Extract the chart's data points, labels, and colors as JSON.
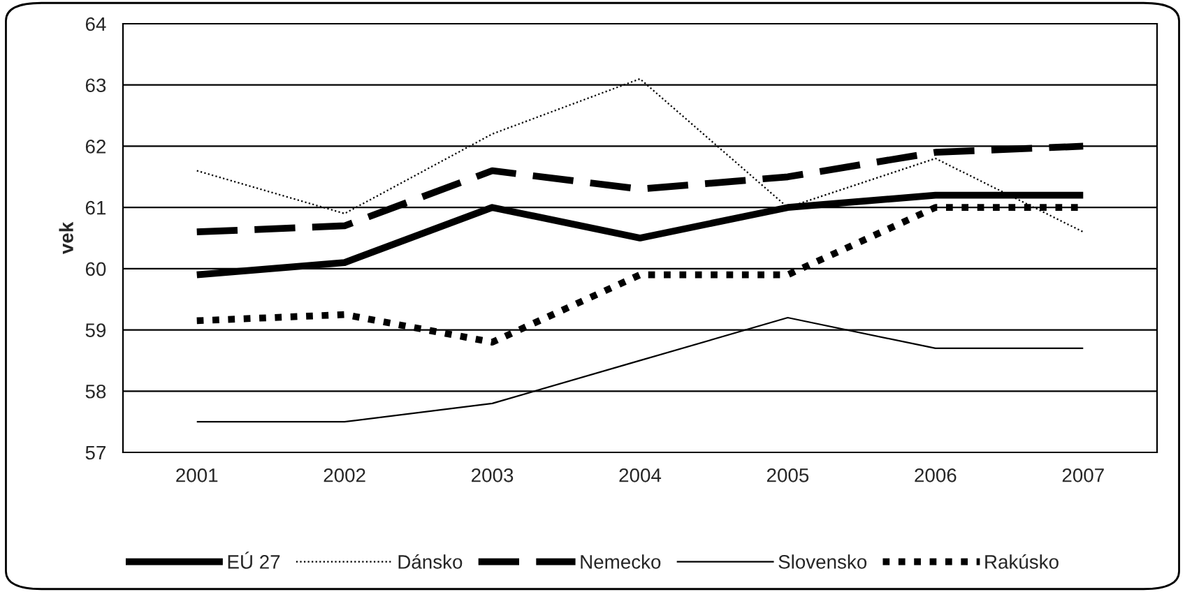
{
  "chart_data": {
    "type": "line",
    "ylabel": "vek",
    "categories": [
      "2001",
      "2002",
      "2003",
      "2004",
      "2005",
      "2006",
      "2007"
    ],
    "series": [
      {
        "name": "EÚ 27",
        "color": "#000000",
        "line_style": "solid",
        "values": [
          59.9,
          60.1,
          61.0,
          60.5,
          61.0,
          61.2,
          61.2
        ]
      },
      {
        "name": "Dánsko",
        "color": "#000000",
        "line_style": "dotted",
        "values": [
          61.6,
          60.9,
          62.2,
          63.1,
          61.0,
          61.8,
          60.6
        ]
      },
      {
        "name": "Nemecko",
        "color": "#000000",
        "line_style": "dashed",
        "values": [
          60.6,
          60.7,
          61.6,
          61.3,
          61.5,
          61.9,
          62.0
        ]
      },
      {
        "name": "Slovensko",
        "color": "#000000",
        "line_style": "solid",
        "values": [
          57.5,
          57.5,
          57.8,
          58.5,
          59.2,
          58.7,
          58.7
        ]
      },
      {
        "name": "Rakúsko",
        "color": "#000000",
        "line_style": "dotted",
        "values": [
          59.15,
          59.25,
          58.8,
          59.9,
          59.9,
          61.0,
          61.0
        ]
      }
    ],
    "ylim": [
      57,
      64
    ],
    "yticks": [
      57,
      58,
      59,
      60,
      61,
      62,
      63,
      64
    ],
    "grid": "y",
    "legend": "bottom",
    "marker": "none"
  }
}
